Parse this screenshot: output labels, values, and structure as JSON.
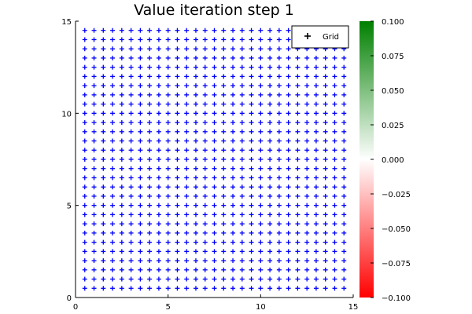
{
  "chart_data": {
    "type": "scatter",
    "title": "Value iteration step 1",
    "xlabel": "",
    "ylabel": "",
    "xlim": [
      0,
      15
    ],
    "ylim": [
      0,
      15
    ],
    "x_ticks": [
      "0",
      "5",
      "10",
      "15"
    ],
    "y_ticks": [
      "0",
      "5",
      "10",
      "15"
    ],
    "grid": false,
    "legend_position": "top-right",
    "series": [
      {
        "name": "Grid",
        "marker": "plus",
        "color": "#0000ff",
        "x_start": 0.5,
        "x_end": 14.5,
        "x_step": 0.5,
        "y_start": 0.5,
        "y_end": 14.5,
        "y_step": 0.5
      }
    ],
    "colorbar": {
      "min": -0.1,
      "max": 0.1,
      "colors": [
        "#ff0000",
        "#ffffff",
        "#008000"
      ],
      "ticks": [
        "0.100",
        "0.075",
        "0.050",
        "0.025",
        "0.000",
        "−0.025",
        "−0.050",
        "−0.075",
        "−0.100"
      ]
    }
  }
}
